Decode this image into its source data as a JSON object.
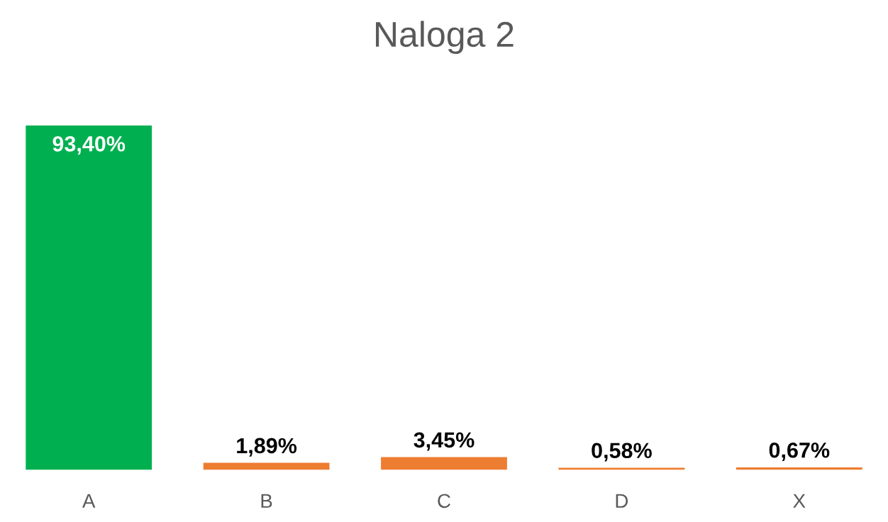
{
  "chart_data": {
    "type": "bar",
    "title": "Naloga 2",
    "categories": [
      "A",
      "B",
      "C",
      "D",
      "X"
    ],
    "values": [
      93.4,
      1.89,
      3.45,
      0.58,
      0.67
    ],
    "colors": [
      "#00b050",
      "#ed7d31",
      "#ed7d31",
      "#ed7d31",
      "#ed7d31"
    ],
    "value_labels": [
      "93,40%",
      "1,89%",
      "3,45%",
      "0,58%",
      "0,67%"
    ],
    "grid": false,
    "legend": false
  }
}
